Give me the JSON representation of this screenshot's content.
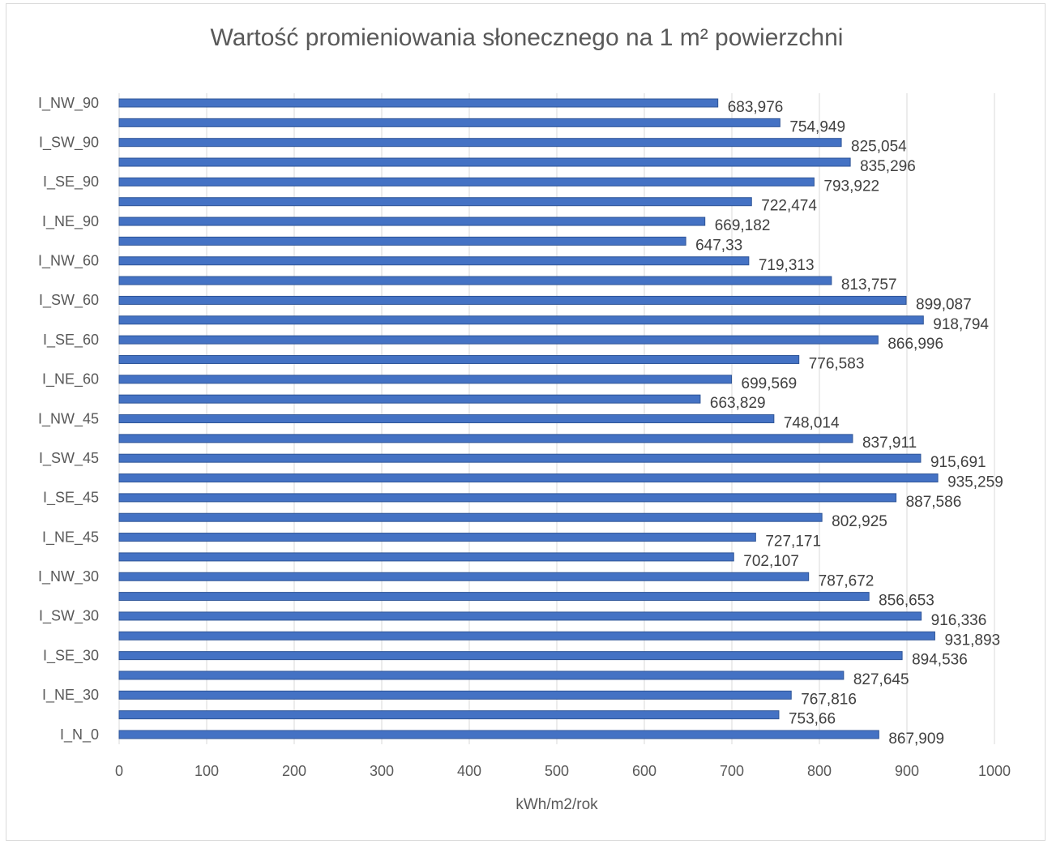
{
  "chart_data": {
    "type": "bar",
    "orientation": "horizontal",
    "title": "Wartość promieniowania słonecznego na 1 m² powierzchni",
    "x_label": "kWh/m2/rok",
    "categories": [
      "I_N_0",
      null,
      "I_NE_30",
      null,
      "I_SE_30",
      null,
      "I_SW_30",
      null,
      "I_NW_30",
      null,
      "I_NE_45",
      null,
      "I_SE_45",
      null,
      "I_SW_45",
      null,
      "I_NW_45",
      null,
      "I_NE_60",
      null,
      "I_SE_60",
      null,
      "I_SW_60",
      null,
      "I_NW_60",
      null,
      "I_NE_90",
      null,
      "I_SE_90",
      null,
      "I_SW_90",
      null,
      "I_NW_90"
    ],
    "values": [
      867.909,
      753.66,
      767.816,
      827.645,
      894.536,
      931.893,
      916.336,
      856.653,
      787.672,
      702.107,
      727.171,
      802.925,
      887.586,
      935.259,
      915.691,
      837.911,
      748.014,
      663.829,
      699.569,
      776.583,
      866.996,
      918.794,
      899.087,
      813.757,
      719.313,
      647.33,
      669.182,
      722.474,
      793.922,
      835.296,
      825.054,
      754.949,
      683.976
    ],
    "value_labels": [
      "867,909",
      "753,66",
      "767,816",
      "827,645",
      "894,536",
      "931,893",
      "916,336",
      "856,653",
      "787,672",
      "702,107",
      "727,171",
      "802,925",
      "887,586",
      "935,259",
      "915,691",
      "837,911",
      "748,014",
      "663,829",
      "699,569",
      "776,583",
      "866,996",
      "918,794",
      "899,087",
      "813,757",
      "719,313",
      "647,33",
      "669,182",
      "722,474",
      "793,922",
      "835,296",
      "825,054",
      "754,949",
      "683,976"
    ],
    "color": "#4472c4",
    "xlim": [
      0,
      1000
    ],
    "xticks": [
      0,
      100,
      200,
      300,
      400,
      500,
      600,
      700,
      800,
      900,
      1000
    ],
    "grid": true
  }
}
